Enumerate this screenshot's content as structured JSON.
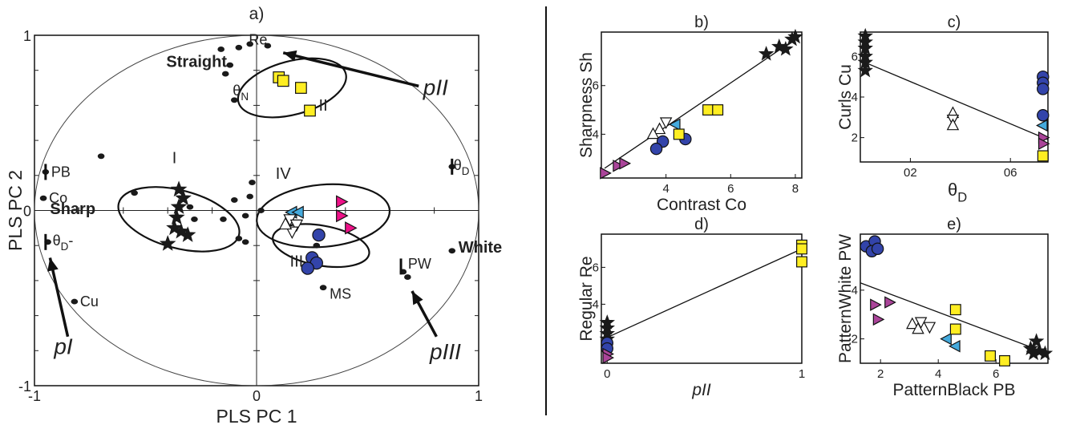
{
  "colors": {
    "black": "#1a1a1a",
    "yellow": "#ffee22",
    "blue": "#3344aa",
    "cyan": "#44aadd",
    "magenta": "#ee1188",
    "purple": "#aa4499",
    "white": "#ffffff"
  },
  "chart_data": [
    {
      "panel": "a)",
      "type": "scatter",
      "title": "a)",
      "xlabel": "PLS PC 1",
      "ylabel": "PLS PC 2",
      "xlim": [
        -1,
        1
      ],
      "ylim": [
        -1,
        1
      ],
      "xticks": [
        "-1",
        "0",
        "1"
      ],
      "yticks": [
        "-1",
        "0",
        "1"
      ],
      "features": [
        {
          "label": "Re",
          "x": -0.08,
          "y": 0.93
        },
        {
          "label": "θN",
          "x": -0.1,
          "y": 0.63
        },
        {
          "label": "PB",
          "x": -0.95,
          "y": 0.22
        },
        {
          "label": "Co",
          "x": -0.96,
          "y": 0.07
        },
        {
          "label": "θD-",
          "x": -0.94,
          "y": -0.18
        },
        {
          "label": "Cu",
          "x": -0.82,
          "y": -0.52
        },
        {
          "label": "θD",
          "x": 0.88,
          "y": 0.25
        },
        {
          "label": "PW",
          "x": 0.66,
          "y": -0.35
        },
        {
          "label": "MS",
          "x": 0.3,
          "y": -0.44
        },
        {
          "label": "White",
          "x": 0.88,
          "y": -0.23
        }
      ],
      "extra_dots": [
        {
          "x": -0.7,
          "y": 0.31
        },
        {
          "x": -0.55,
          "y": 0.1
        },
        {
          "x": -0.3,
          "y": 0.02
        },
        {
          "x": -0.15,
          "y": -0.05
        },
        {
          "x": -0.05,
          "y": -0.03
        },
        {
          "x": 0.02,
          "y": 0.0
        },
        {
          "x": -0.03,
          "y": 0.08
        },
        {
          "x": -0.02,
          "y": 0.16
        },
        {
          "x": -0.1,
          "y": 0.06
        },
        {
          "x": -0.14,
          "y": 0.78
        },
        {
          "x": -0.12,
          "y": 0.83
        },
        {
          "x": -0.03,
          "y": 0.95
        },
        {
          "x": 0.05,
          "y": 0.94
        },
        {
          "x": -0.16,
          "y": 0.92
        },
        {
          "x": -0.05,
          "y": -0.18
        },
        {
          "x": -0.08,
          "y": -0.16
        },
        {
          "x": -0.28,
          "y": -0.05
        },
        {
          "x": 0.27,
          "y": -0.2
        },
        {
          "x": 0.68,
          "y": -0.38
        }
      ],
      "groups": [
        {
          "name": "I",
          "marker": "star",
          "points": [
            {
              "x": -0.35,
              "y": 0.12
            },
            {
              "x": -0.33,
              "y": 0.07
            },
            {
              "x": -0.35,
              "y": 0.02
            },
            {
              "x": -0.37,
              "y": -0.1
            },
            {
              "x": -0.34,
              "y": -0.12
            },
            {
              "x": -0.31,
              "y": -0.14
            },
            {
              "x": -0.4,
              "y": -0.19
            },
            {
              "x": -0.36,
              "y": -0.04
            }
          ]
        },
        {
          "name": "II",
          "marker": "square",
          "points": [
            {
              "x": 0.1,
              "y": 0.76
            },
            {
              "x": 0.12,
              "y": 0.74
            },
            {
              "x": 0.2,
              "y": 0.7
            },
            {
              "x": 0.24,
              "y": 0.57
            }
          ]
        },
        {
          "name": "III",
          "marker": "circle",
          "points": [
            {
              "x": 0.28,
              "y": -0.14
            },
            {
              "x": 0.25,
              "y": -0.27
            },
            {
              "x": 0.27,
              "y": -0.3
            },
            {
              "x": 0.23,
              "y": -0.33
            }
          ]
        },
        {
          "name": "IV",
          "marker": "mixed",
          "points": [
            {
              "x": 0.38,
              "y": 0.05,
              "m": "tri-right",
              "c": "magenta"
            },
            {
              "x": 0.38,
              "y": -0.03,
              "m": "tri-right",
              "c": "magenta"
            },
            {
              "x": 0.42,
              "y": -0.1,
              "m": "tri-right",
              "c": "magenta"
            },
            {
              "x": 0.16,
              "y": -0.01,
              "m": "tri-left",
              "c": "cyan"
            },
            {
              "x": 0.19,
              "y": -0.01,
              "m": "tri-left",
              "c": "cyan"
            },
            {
              "x": 0.15,
              "y": -0.05,
              "m": "tri-down",
              "c": "white"
            },
            {
              "x": 0.18,
              "y": -0.08,
              "m": "tri-down",
              "c": "white"
            },
            {
              "x": 0.16,
              "y": -0.12,
              "m": "tri-down",
              "c": "white"
            },
            {
              "x": 0.13,
              "y": -0.08,
              "m": "tri-up",
              "c": "white"
            }
          ]
        }
      ],
      "ellipses": [
        {
          "label": "I",
          "cx": -0.35,
          "cy": -0.05,
          "rx": 0.13,
          "ry": 0.28,
          "rot": -75
        },
        {
          "label": "II",
          "cx": 0.16,
          "cy": 0.7,
          "rx": 0.12,
          "ry": 0.25,
          "rot": -105
        },
        {
          "label": "III",
          "cx": 0.29,
          "cy": -0.2,
          "rx": 0.09,
          "ry": 0.22,
          "rot": -80
        },
        {
          "label": "IV",
          "cx": 0.3,
          "cy": -0.03,
          "rx": 0.3,
          "ry": 0.14,
          "rot": -5
        }
      ],
      "annotations": [
        {
          "text": "Straight",
          "x": -0.27,
          "y": 0.82
        },
        {
          "text": "Sharp",
          "x": -0.93,
          "y": -0.02
        },
        {
          "text": "pII",
          "x": 0.75,
          "y": 0.66
        },
        {
          "text": "pI",
          "x": -0.87,
          "y": -0.82
        },
        {
          "text": "pIII",
          "x": 0.78,
          "y": -0.85
        }
      ]
    },
    {
      "panel": "b)",
      "type": "scatter",
      "title": "b)",
      "xlabel": "Contrast Co",
      "ylabel": "Sharpness Sh",
      "xlim": [
        2,
        8.2
      ],
      "ylim": [
        2.2,
        8.2
      ],
      "xticks": [
        4,
        6,
        8
      ],
      "yticks": [
        4,
        6
      ],
      "fit_line": [
        [
          2.1,
          2.6
        ],
        [
          8.1,
          8.0
        ]
      ],
      "points": [
        {
          "x": 2.1,
          "y": 2.4,
          "m": "tri-right",
          "c": "purple"
        },
        {
          "x": 2.5,
          "y": 2.7,
          "m": "tri-right",
          "c": "purple"
        },
        {
          "x": 2.7,
          "y": 2.8,
          "m": "tri-right",
          "c": "purple"
        },
        {
          "x": 3.8,
          "y": 4.2,
          "m": "tri-up",
          "c": "white"
        },
        {
          "x": 3.6,
          "y": 4.0,
          "m": "tri-up",
          "c": "white"
        },
        {
          "x": 4.0,
          "y": 4.5,
          "m": "tri-down",
          "c": "white"
        },
        {
          "x": 4.3,
          "y": 4.4,
          "m": "tri-left",
          "c": "cyan"
        },
        {
          "x": 3.9,
          "y": 3.7,
          "m": "circle",
          "c": "blue"
        },
        {
          "x": 3.7,
          "y": 3.4,
          "m": "circle",
          "c": "blue"
        },
        {
          "x": 4.6,
          "y": 3.8,
          "m": "circle",
          "c": "blue"
        },
        {
          "x": 4.4,
          "y": 4.0,
          "m": "square",
          "c": "yellow"
        },
        {
          "x": 5.3,
          "y": 5.0,
          "m": "square",
          "c": "yellow"
        },
        {
          "x": 5.6,
          "y": 5.0,
          "m": "square",
          "c": "yellow"
        },
        {
          "x": 7.1,
          "y": 7.3,
          "m": "star",
          "c": "black"
        },
        {
          "x": 7.5,
          "y": 7.6,
          "m": "star",
          "c": "black"
        },
        {
          "x": 7.7,
          "y": 7.5,
          "m": "star",
          "c": "black"
        },
        {
          "x": 7.9,
          "y": 7.9,
          "m": "star",
          "c": "black"
        },
        {
          "x": 8.0,
          "y": 8.0,
          "m": "star",
          "c": "black"
        }
      ]
    },
    {
      "panel": "c)",
      "type": "scatter",
      "title": "c)",
      "xlabel": "θD",
      "ylabel": "Curls Cu",
      "xlim": [
        0,
        0.75
      ],
      "ylim": [
        0.8,
        7.2
      ],
      "xticks": [
        "02",
        "06"
      ],
      "xtick_values": [
        0.2,
        0.6
      ],
      "yticks": [
        2,
        4,
        6
      ],
      "fit_line": [
        [
          0.0,
          5.8
        ],
        [
          0.75,
          1.9
        ]
      ],
      "points": [
        {
          "x": 0.02,
          "y": 7.0,
          "m": "star",
          "c": "black"
        },
        {
          "x": 0.02,
          "y": 6.7,
          "m": "star",
          "c": "black"
        },
        {
          "x": 0.02,
          "y": 6.4,
          "m": "star",
          "c": "black"
        },
        {
          "x": 0.02,
          "y": 6.0,
          "m": "star",
          "c": "black"
        },
        {
          "x": 0.02,
          "y": 5.7,
          "m": "star",
          "c": "black"
        },
        {
          "x": 0.02,
          "y": 5.3,
          "m": "star",
          "c": "black"
        },
        {
          "x": 0.37,
          "y": 3.2,
          "m": "tri-up",
          "c": "white"
        },
        {
          "x": 0.37,
          "y": 2.9,
          "m": "tri-down",
          "c": "white"
        },
        {
          "x": 0.37,
          "y": 2.6,
          "m": "tri-up",
          "c": "white"
        },
        {
          "x": 0.73,
          "y": 5.0,
          "m": "circle",
          "c": "blue"
        },
        {
          "x": 0.73,
          "y": 4.7,
          "m": "circle",
          "c": "blue"
        },
        {
          "x": 0.73,
          "y": 4.4,
          "m": "circle",
          "c": "blue"
        },
        {
          "x": 0.73,
          "y": 3.1,
          "m": "circle",
          "c": "blue"
        },
        {
          "x": 0.73,
          "y": 2.6,
          "m": "tri-left",
          "c": "cyan"
        },
        {
          "x": 0.73,
          "y": 2.0,
          "m": "tri-right",
          "c": "purple"
        },
        {
          "x": 0.73,
          "y": 1.7,
          "m": "tri-right",
          "c": "purple"
        },
        {
          "x": 0.73,
          "y": 1.1,
          "m": "square",
          "c": "yellow"
        }
      ]
    },
    {
      "panel": "d)",
      "type": "scatter",
      "title": "d)",
      "xlabel": "pII",
      "ylabel": "Regular Re",
      "xlim": [
        -0.03,
        1.0
      ],
      "ylim": [
        0.8,
        7.8
      ],
      "xticks": [
        0,
        1
      ],
      "yticks": [
        4,
        6
      ],
      "fit_line": [
        [
          0.0,
          2.2
        ],
        [
          1.0,
          7.0
        ]
      ],
      "points": [
        {
          "x": 0,
          "y": 3.0,
          "m": "star",
          "c": "black"
        },
        {
          "x": 0,
          "y": 2.7,
          "m": "star",
          "c": "black"
        },
        {
          "x": 0,
          "y": 2.4,
          "m": "star",
          "c": "black"
        },
        {
          "x": 0,
          "y": 2.1,
          "m": "star",
          "c": "black"
        },
        {
          "x": 0,
          "y": 1.9,
          "m": "circle",
          "c": "blue"
        },
        {
          "x": 0,
          "y": 1.6,
          "m": "circle",
          "c": "blue"
        },
        {
          "x": 0,
          "y": 1.3,
          "m": "tri-right",
          "c": "purple"
        },
        {
          "x": 0,
          "y": 1.1,
          "m": "tri-right",
          "c": "purple"
        },
        {
          "x": 1,
          "y": 7.2,
          "m": "square",
          "c": "yellow"
        },
        {
          "x": 1,
          "y": 7.0,
          "m": "square",
          "c": "yellow"
        },
        {
          "x": 1,
          "y": 6.3,
          "m": "square",
          "c": "yellow"
        }
      ]
    },
    {
      "panel": "e)",
      "type": "scatter",
      "title": "e)",
      "xlabel": "PatternBlack PB",
      "ylabel": "PatternWhite PW",
      "xlim": [
        1.3,
        7.8
      ],
      "ylim": [
        1.0,
        6.3
      ],
      "xticks": [
        2,
        4,
        6
      ],
      "yticks": [
        2,
        4
      ],
      "fit_line": [
        [
          1.3,
          4.3
        ],
        [
          7.8,
          1.4
        ]
      ],
      "points": [
        {
          "x": 1.5,
          "y": 5.8,
          "m": "circle",
          "c": "blue"
        },
        {
          "x": 1.8,
          "y": 6.0,
          "m": "circle",
          "c": "blue"
        },
        {
          "x": 1.7,
          "y": 5.6,
          "m": "circle",
          "c": "blue"
        },
        {
          "x": 1.9,
          "y": 5.7,
          "m": "circle",
          "c": "blue"
        },
        {
          "x": 1.8,
          "y": 3.4,
          "m": "tri-right",
          "c": "purple"
        },
        {
          "x": 2.3,
          "y": 3.5,
          "m": "tri-right",
          "c": "purple"
        },
        {
          "x": 1.9,
          "y": 2.8,
          "m": "tri-right",
          "c": "purple"
        },
        {
          "x": 3.1,
          "y": 2.6,
          "m": "tri-up",
          "c": "white"
        },
        {
          "x": 3.4,
          "y": 2.7,
          "m": "tri-down",
          "c": "white"
        },
        {
          "x": 3.7,
          "y": 2.5,
          "m": "tri-down",
          "c": "white"
        },
        {
          "x": 3.3,
          "y": 2.4,
          "m": "tri-up",
          "c": "white"
        },
        {
          "x": 4.3,
          "y": 2.0,
          "m": "tri-left",
          "c": "cyan"
        },
        {
          "x": 4.6,
          "y": 1.7,
          "m": "tri-left",
          "c": "cyan"
        },
        {
          "x": 4.6,
          "y": 3.2,
          "m": "square",
          "c": "yellow"
        },
        {
          "x": 4.6,
          "y": 2.4,
          "m": "square",
          "c": "yellow"
        },
        {
          "x": 5.8,
          "y": 1.3,
          "m": "square",
          "c": "yellow"
        },
        {
          "x": 6.3,
          "y": 1.1,
          "m": "square",
          "c": "yellow"
        },
        {
          "x": 7.2,
          "y": 1.6,
          "m": "star",
          "c": "black"
        },
        {
          "x": 7.4,
          "y": 1.9,
          "m": "star",
          "c": "black"
        },
        {
          "x": 7.5,
          "y": 1.5,
          "m": "star",
          "c": "black"
        },
        {
          "x": 7.7,
          "y": 1.4,
          "m": "star",
          "c": "black"
        },
        {
          "x": 7.3,
          "y": 1.4,
          "m": "star",
          "c": "black"
        }
      ]
    }
  ]
}
